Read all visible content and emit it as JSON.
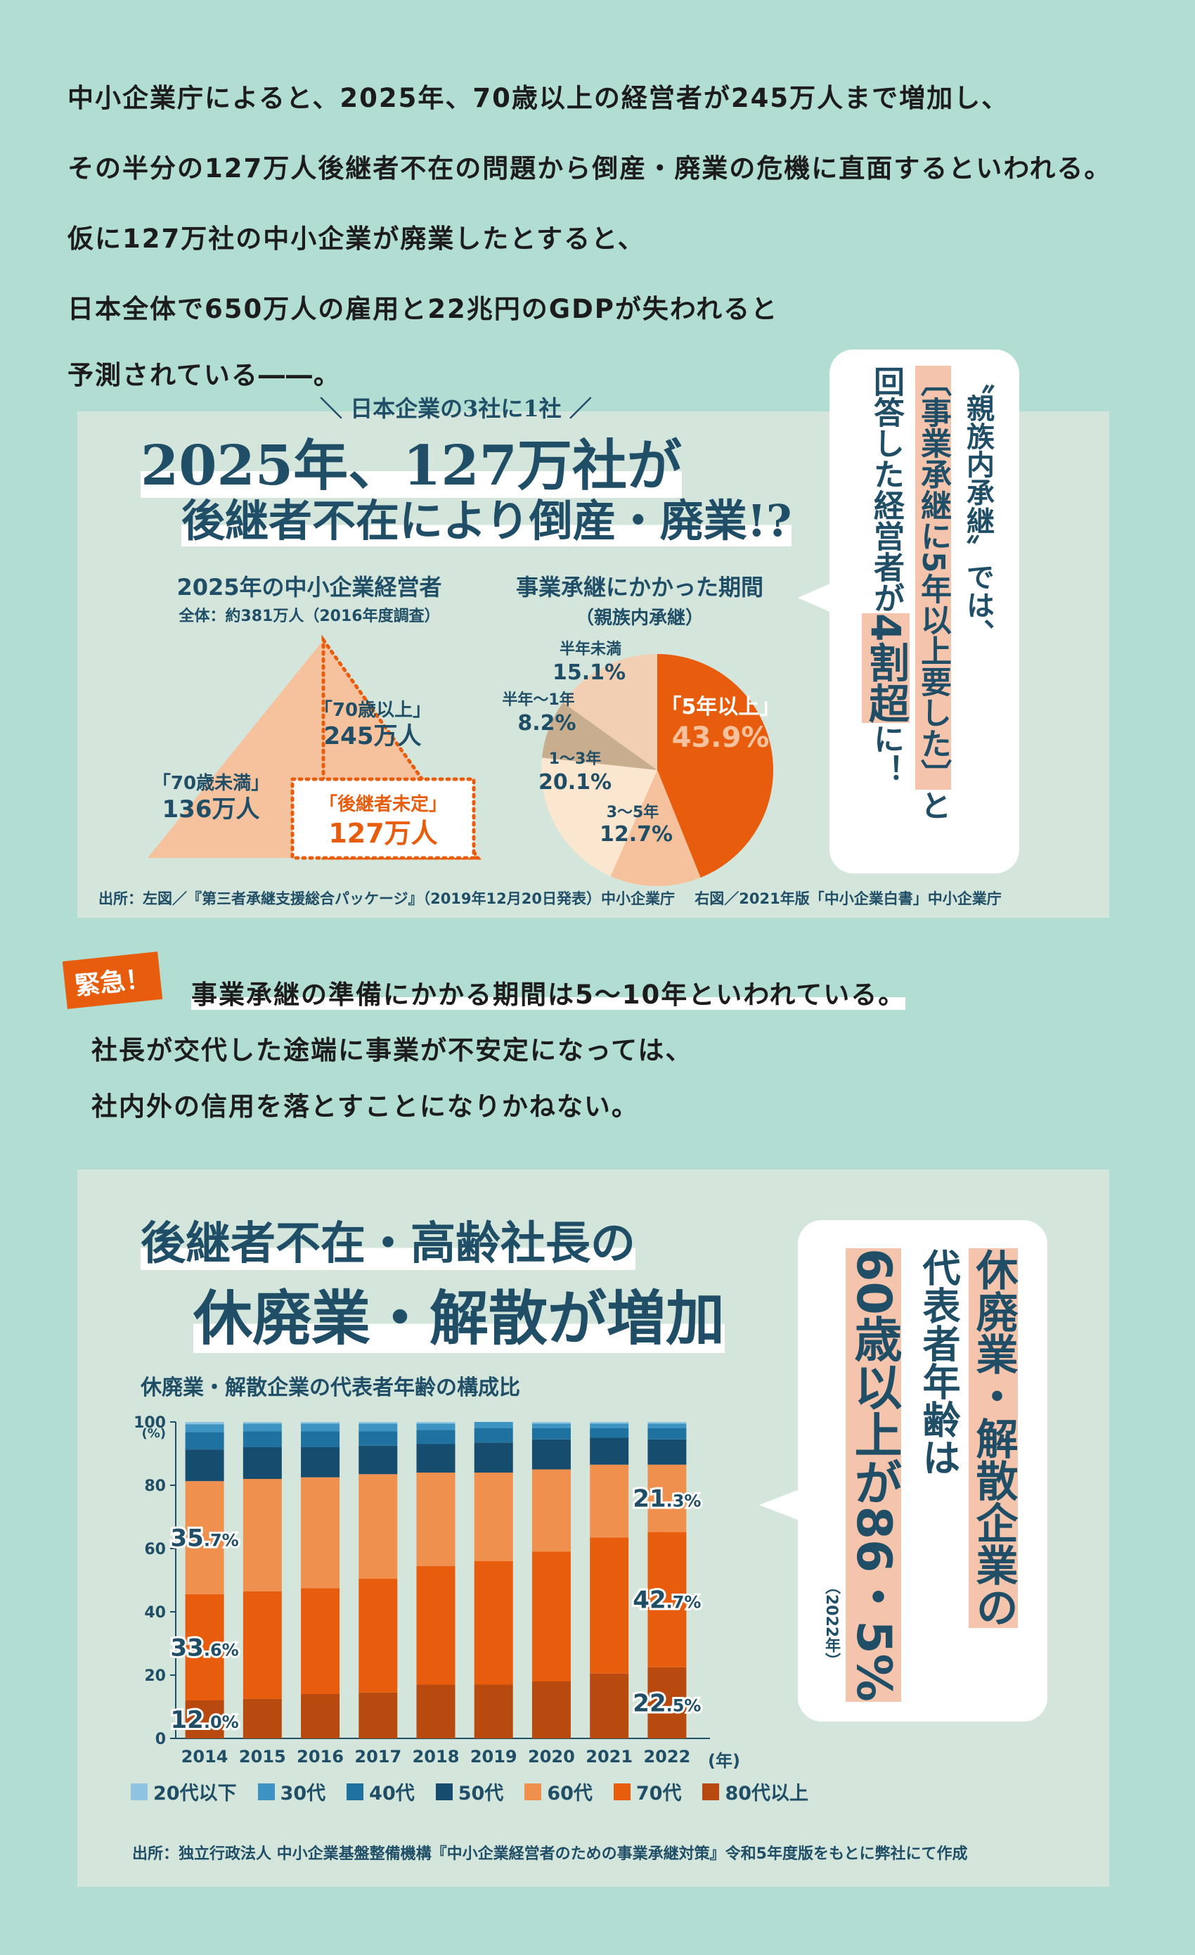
{
  "intro": {
    "line1": "中小企業庁によると、2025年、70歳以上の経営者が245万人まで増加し、",
    "line2": "その半分の127万人後継者不在の問題から倒産・廃業の危機に直面するといわれる。",
    "line3": "仮に127万社の中小企業が廃業したとすると、",
    "line4": "日本全体で650万人の雇用と22兆円のGDPが失われると",
    "line5": "予測されている――。"
  },
  "panel1": {
    "kicker": "＼ 日本企業の3社に1社 ／",
    "title1": "2025年、127万社が",
    "title2": "後継者不在により倒産・廃業!?",
    "tri_title": "2025年の中小企業経営者",
    "tri_sub": "全体：約381万人（2016年度調査）",
    "pie_title": "事業承継にかかった期間",
    "pie_sub": "（親族内承継）",
    "source": "出所：左図／『第三者承継支援総合パッケージ』（2019年12月20日発表）中小企業庁　 右図／2021年版「中小企業白書」中小企業庁",
    "callout_col1": "〝親族内承継〟では、",
    "callout_col2a": "〔事業承継に5年以上要した〕",
    "callout_col2b": "と",
    "callout_col3a": "回答した経営者が",
    "callout_col3b": "4割超",
    "callout_col3c": "に！",
    "colors": {
      "orange": "#e85d0d",
      "light": "#f6c29d",
      "pale": "#fbe6cf",
      "tan": "#c9ad8f",
      "navy": "#1f4e66"
    }
  },
  "urgent": {
    "badge": "緊急！",
    "line1": "事業承継の準備にかかる期間は5～10年といわれている。",
    "line2": "社長が交代した途端に事業が不安定になっては、",
    "line3": "社内外の信用を落とすことになりかねない。"
  },
  "panel2": {
    "title1": "後継者不在・高齢社長の",
    "title2": "休廃業・解散が増加",
    "chart_title": "休廃業・解散企業の代表者年齢の構成比",
    "y_unit": "(%)",
    "x_unit": "(年)",
    "callout_col1": "休廃業・解散企業の",
    "callout_col2": "代表者年齢は",
    "callout_col3a": "60歳以上が86・5%",
    "callout_col3b": "（2022年）",
    "source": "出所：独立行政法人 中小企業基盤整備機構『中小企業経営者のための事業承継対策』令和5年度版をもとに弊社にて作成"
  },
  "chart_data": [
    {
      "type": "area",
      "title": "2025年の中小企業経営者",
      "subtitle": "全体：約381万人（2016年度調査）",
      "segments": [
        {
          "label": "「70歳未満」",
          "value_label": "136万人",
          "value": 136
        },
        {
          "label": "「70歳以上」",
          "value_label": "245万人",
          "value": 245
        },
        {
          "label": "「後継者未定」",
          "value_label": "127万人",
          "value": 127
        }
      ],
      "unit": "万人"
    },
    {
      "type": "pie",
      "title": "事業承継にかかった期間",
      "subtitle": "（親族内承継）",
      "slices": [
        {
          "label": "「5年以上」",
          "value": 43.9,
          "value_label": "43.9%",
          "color": "#e85d0d"
        },
        {
          "label": "3～5年",
          "value": 12.7,
          "value_label": "12.7%",
          "color": "#f6c29d"
        },
        {
          "label": "1～3年",
          "value": 20.1,
          "value_label": "20.1%",
          "color": "#fbe6cf"
        },
        {
          "label": "半年～1年",
          "value": 8.2,
          "value_label": "8.2%",
          "color": "#c9ad8f"
        },
        {
          "label": "半年未満",
          "value": 15.1,
          "value_label": "15.1%",
          "color": "#f2cfb2"
        }
      ]
    },
    {
      "type": "bar",
      "stacked": true,
      "title": "休廃業・解散企業の代表者年齢の構成比",
      "ylabel": "(%)",
      "xlabel": "(年)",
      "ylim": [
        0,
        100
      ],
      "yticks": [
        0,
        20,
        40,
        60,
        80,
        100
      ],
      "categories": [
        "2014",
        "2015",
        "2016",
        "2017",
        "2018",
        "2019",
        "2020",
        "2021",
        "2022"
      ],
      "series": [
        {
          "name": "80代以上",
          "color": "#b84a10",
          "values": [
            12.0,
            12.5,
            14.0,
            14.5,
            17.0,
            17.0,
            18.0,
            20.5,
            22.5
          ]
        },
        {
          "name": "70代",
          "color": "#e85d0d",
          "values": [
            33.6,
            34.0,
            33.5,
            36.0,
            37.5,
            39.0,
            41.0,
            43.0,
            42.7
          ]
        },
        {
          "name": "60代",
          "color": "#f0904f",
          "values": [
            35.7,
            35.5,
            35.0,
            33.0,
            29.5,
            28.0,
            26.0,
            23.0,
            21.3
          ]
        },
        {
          "name": "50代",
          "color": "#164c6e",
          "values": [
            10.0,
            10.0,
            9.5,
            9.0,
            9.0,
            9.5,
            9.5,
            8.5,
            8.0
          ]
        },
        {
          "name": "40代",
          "color": "#1f72a0",
          "values": [
            5.5,
            5.0,
            5.0,
            4.5,
            4.5,
            4.5,
            3.5,
            3.0,
            3.5
          ]
        },
        {
          "name": "30代",
          "color": "#3d94c2",
          "values": [
            2.5,
            2.5,
            2.5,
            2.5,
            2.0,
            2.0,
            1.5,
            1.5,
            1.5
          ]
        },
        {
          "name": "20代以下",
          "color": "#8fc3e0",
          "values": [
            0.7,
            0.5,
            0.5,
            0.5,
            0.5,
            0.0,
            0.5,
            0.5,
            0.5
          ]
        }
      ],
      "data_labels": [
        {
          "category": "2014",
          "series": "80代以上",
          "num": "12",
          "dec": ".0%"
        },
        {
          "category": "2014",
          "series": "70代",
          "num": "33",
          "dec": ".6%"
        },
        {
          "category": "2014",
          "series": "60代",
          "num": "35",
          "dec": ".7%"
        },
        {
          "category": "2022",
          "series": "80代以上",
          "num": "22",
          "dec": ".5%"
        },
        {
          "category": "2022",
          "series": "70代",
          "num": "42",
          "dec": ".7%"
        },
        {
          "category": "2022",
          "series": "60代",
          "num": "21",
          "dec": ".3%"
        }
      ],
      "legend_order": [
        "20代以下",
        "30代",
        "40代",
        "50代",
        "60代",
        "70代",
        "80代以上"
      ],
      "legend": "bottom"
    }
  ]
}
